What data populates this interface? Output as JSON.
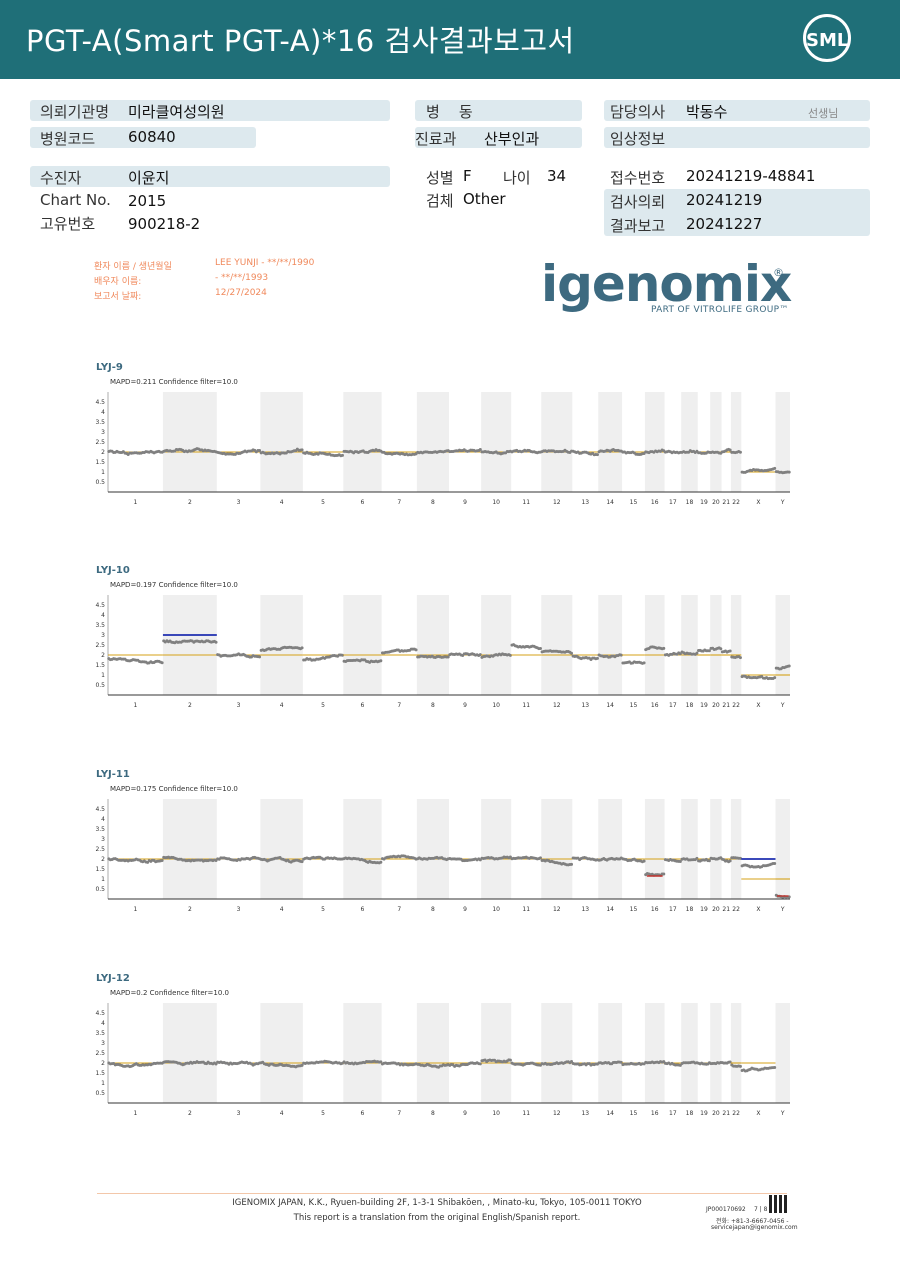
{
  "header": {
    "title": "PGT-A(Smart  PGT-A)*16 검사결과보고서",
    "logo": "SML"
  },
  "info": {
    "institution_label": "의뢰기관명",
    "institution": "미라클여성의원",
    "hospital_code_label": "병원코드",
    "hospital_code": "60840",
    "ward_label": "병    동",
    "dept_label": "진료과",
    "dept": "산부인과",
    "doctor_label": "담당의사",
    "doctor": "박동수",
    "doctor_suffix": "선생님",
    "clinical_label": "임상정보",
    "patient_label": "수진자",
    "patient": "이윤지",
    "chart_no_label": "Chart No.",
    "chart_no": "2015",
    "unique_label": "고유번호",
    "unique_no": "900218-2",
    "sex_label": "성별",
    "sex": "F",
    "age_label": "나이",
    "age": "34",
    "specimen_label": "검체",
    "specimen": "Other",
    "receipt_label": "접수번호",
    "receipt_no": "20241219-48841",
    "request_label": "검사의뢰",
    "request_date": "20241219",
    "report_label": "결과보고",
    "report_date": "20241227"
  },
  "meta": {
    "patient_name_label": "환자 이름 / 생년월일",
    "patient_name_value": "LEE YUNJI - **/**/1990",
    "spouse_label": "배우자 이름:",
    "spouse_value": "- **/**/1993",
    "report_date_label": "보고서 날짜:",
    "report_date_value": "12/27/2024"
  },
  "brand": {
    "name": "igenomix",
    "reg": "®",
    "tagline": "PART OF VITROLIFE GROUP™"
  },
  "colors": {
    "header": "#1f6f78",
    "bar": "#dde9ee",
    "baseline": "#d4a017",
    "gain": "#1f2fb0",
    "loss": "#c0302b",
    "dots": "#808080"
  },
  "chart_data": [
    {
      "type": "scatter",
      "title": "LYJ-9",
      "subtitle": "MAPD=0.211 Confidence filter=10.0",
      "y_ticks": [
        "4.5",
        "4",
        "3.5",
        "3",
        "2.5",
        "2",
        "1.5",
        "1",
        "0.5"
      ],
      "x_labels": [
        "1",
        "2",
        "3",
        "4",
        "5",
        "6",
        "7",
        "8",
        "9",
        "10",
        "11",
        "12",
        "13",
        "14",
        "15",
        "16",
        "17",
        "18",
        "19",
        "20",
        "21",
        "22",
        "X",
        "Y"
      ],
      "chromosome_copy_number": [
        2,
        2,
        2,
        2,
        2,
        2,
        2,
        2,
        2,
        2,
        2,
        2,
        2,
        2,
        2,
        2,
        2,
        2,
        2,
        2,
        2,
        2,
        1,
        1
      ]
    },
    {
      "type": "scatter",
      "title": "LYJ-10",
      "subtitle": "MAPD=0.197 Confidence filter=10.0",
      "y_ticks": [
        "4.5",
        "4",
        "3.5",
        "3",
        "2.5",
        "2",
        "1.5",
        "1",
        "0.5"
      ],
      "x_labels": [
        "1",
        "2",
        "3",
        "4",
        "5",
        "6",
        "7",
        "8",
        "9",
        "10",
        "11",
        "12",
        "13",
        "14",
        "15",
        "16",
        "17",
        "18",
        "19",
        "20",
        "21",
        "22",
        "X",
        "Y"
      ],
      "chromosome_copy_number": [
        1.8,
        2.7,
        2,
        2.2,
        1.8,
        1.7,
        2.1,
        1.9,
        2,
        1.9,
        2.5,
        2.2,
        1.9,
        2,
        1.6,
        2.3,
        2,
        2.1,
        2.2,
        2.3,
        2.2,
        1.9,
        0.9,
        1.3
      ],
      "gains": [
        "2"
      ]
    },
    {
      "type": "scatter",
      "title": "LYJ-11",
      "subtitle": "MAPD=0.175 Confidence filter=10.0",
      "y_ticks": [
        "4.5",
        "4",
        "3.5",
        "3",
        "2.5",
        "2",
        "1.5",
        "1",
        "0.5"
      ],
      "x_labels": [
        "1",
        "2",
        "3",
        "4",
        "5",
        "6",
        "7",
        "8",
        "9",
        "10",
        "11",
        "12",
        "13",
        "14",
        "15",
        "16",
        "17",
        "18",
        "19",
        "20",
        "21",
        "22",
        "X",
        "Y"
      ],
      "chromosome_copy_number": [
        2,
        2.1,
        2,
        2,
        2,
        2,
        2,
        2,
        2,
        2,
        2,
        1.9,
        2,
        2,
        2,
        1.2,
        2,
        2,
        1.9,
        2,
        2,
        2,
        1.7,
        0.2
      ],
      "gains": [
        "X"
      ],
      "losses": [
        "16",
        "Y"
      ]
    },
    {
      "type": "scatter",
      "title": "LYJ-12",
      "subtitle": "MAPD=0.2 Confidence filter=10.0",
      "y_ticks": [
        "4.5",
        "4",
        "3.5",
        "3",
        "2.5",
        "2",
        "1.5",
        "1",
        "0.5"
      ],
      "x_labels": [
        "1",
        "2",
        "3",
        "4",
        "5",
        "6",
        "7",
        "8",
        "9",
        "10",
        "11",
        "12",
        "13",
        "14",
        "15",
        "16",
        "17",
        "18",
        "19",
        "20",
        "21",
        "22",
        "X",
        "Y"
      ],
      "chromosome_copy_number": [
        2,
        2,
        2,
        2,
        2,
        2,
        2,
        1.9,
        1.9,
        2.1,
        2,
        2,
        2,
        2,
        1.9,
        2,
        2,
        2,
        2,
        2,
        2,
        1.9,
        1.6,
        null
      ]
    }
  ],
  "footer": {
    "line1": "IGENOMIX JAPAN, K.K., Ryuen-building 2F, 1-3-1 Shibakōen, , Minato-ku, Tokyo, 105-0011 TOKYO",
    "line2": "This report is a translation from the original English/Spanish report.",
    "doc_id": "JP000170692",
    "page": "7 | 8",
    "phone": "전화: +81-3-6667-0456 -",
    "email": "servicejapan@igenomix.com"
  }
}
